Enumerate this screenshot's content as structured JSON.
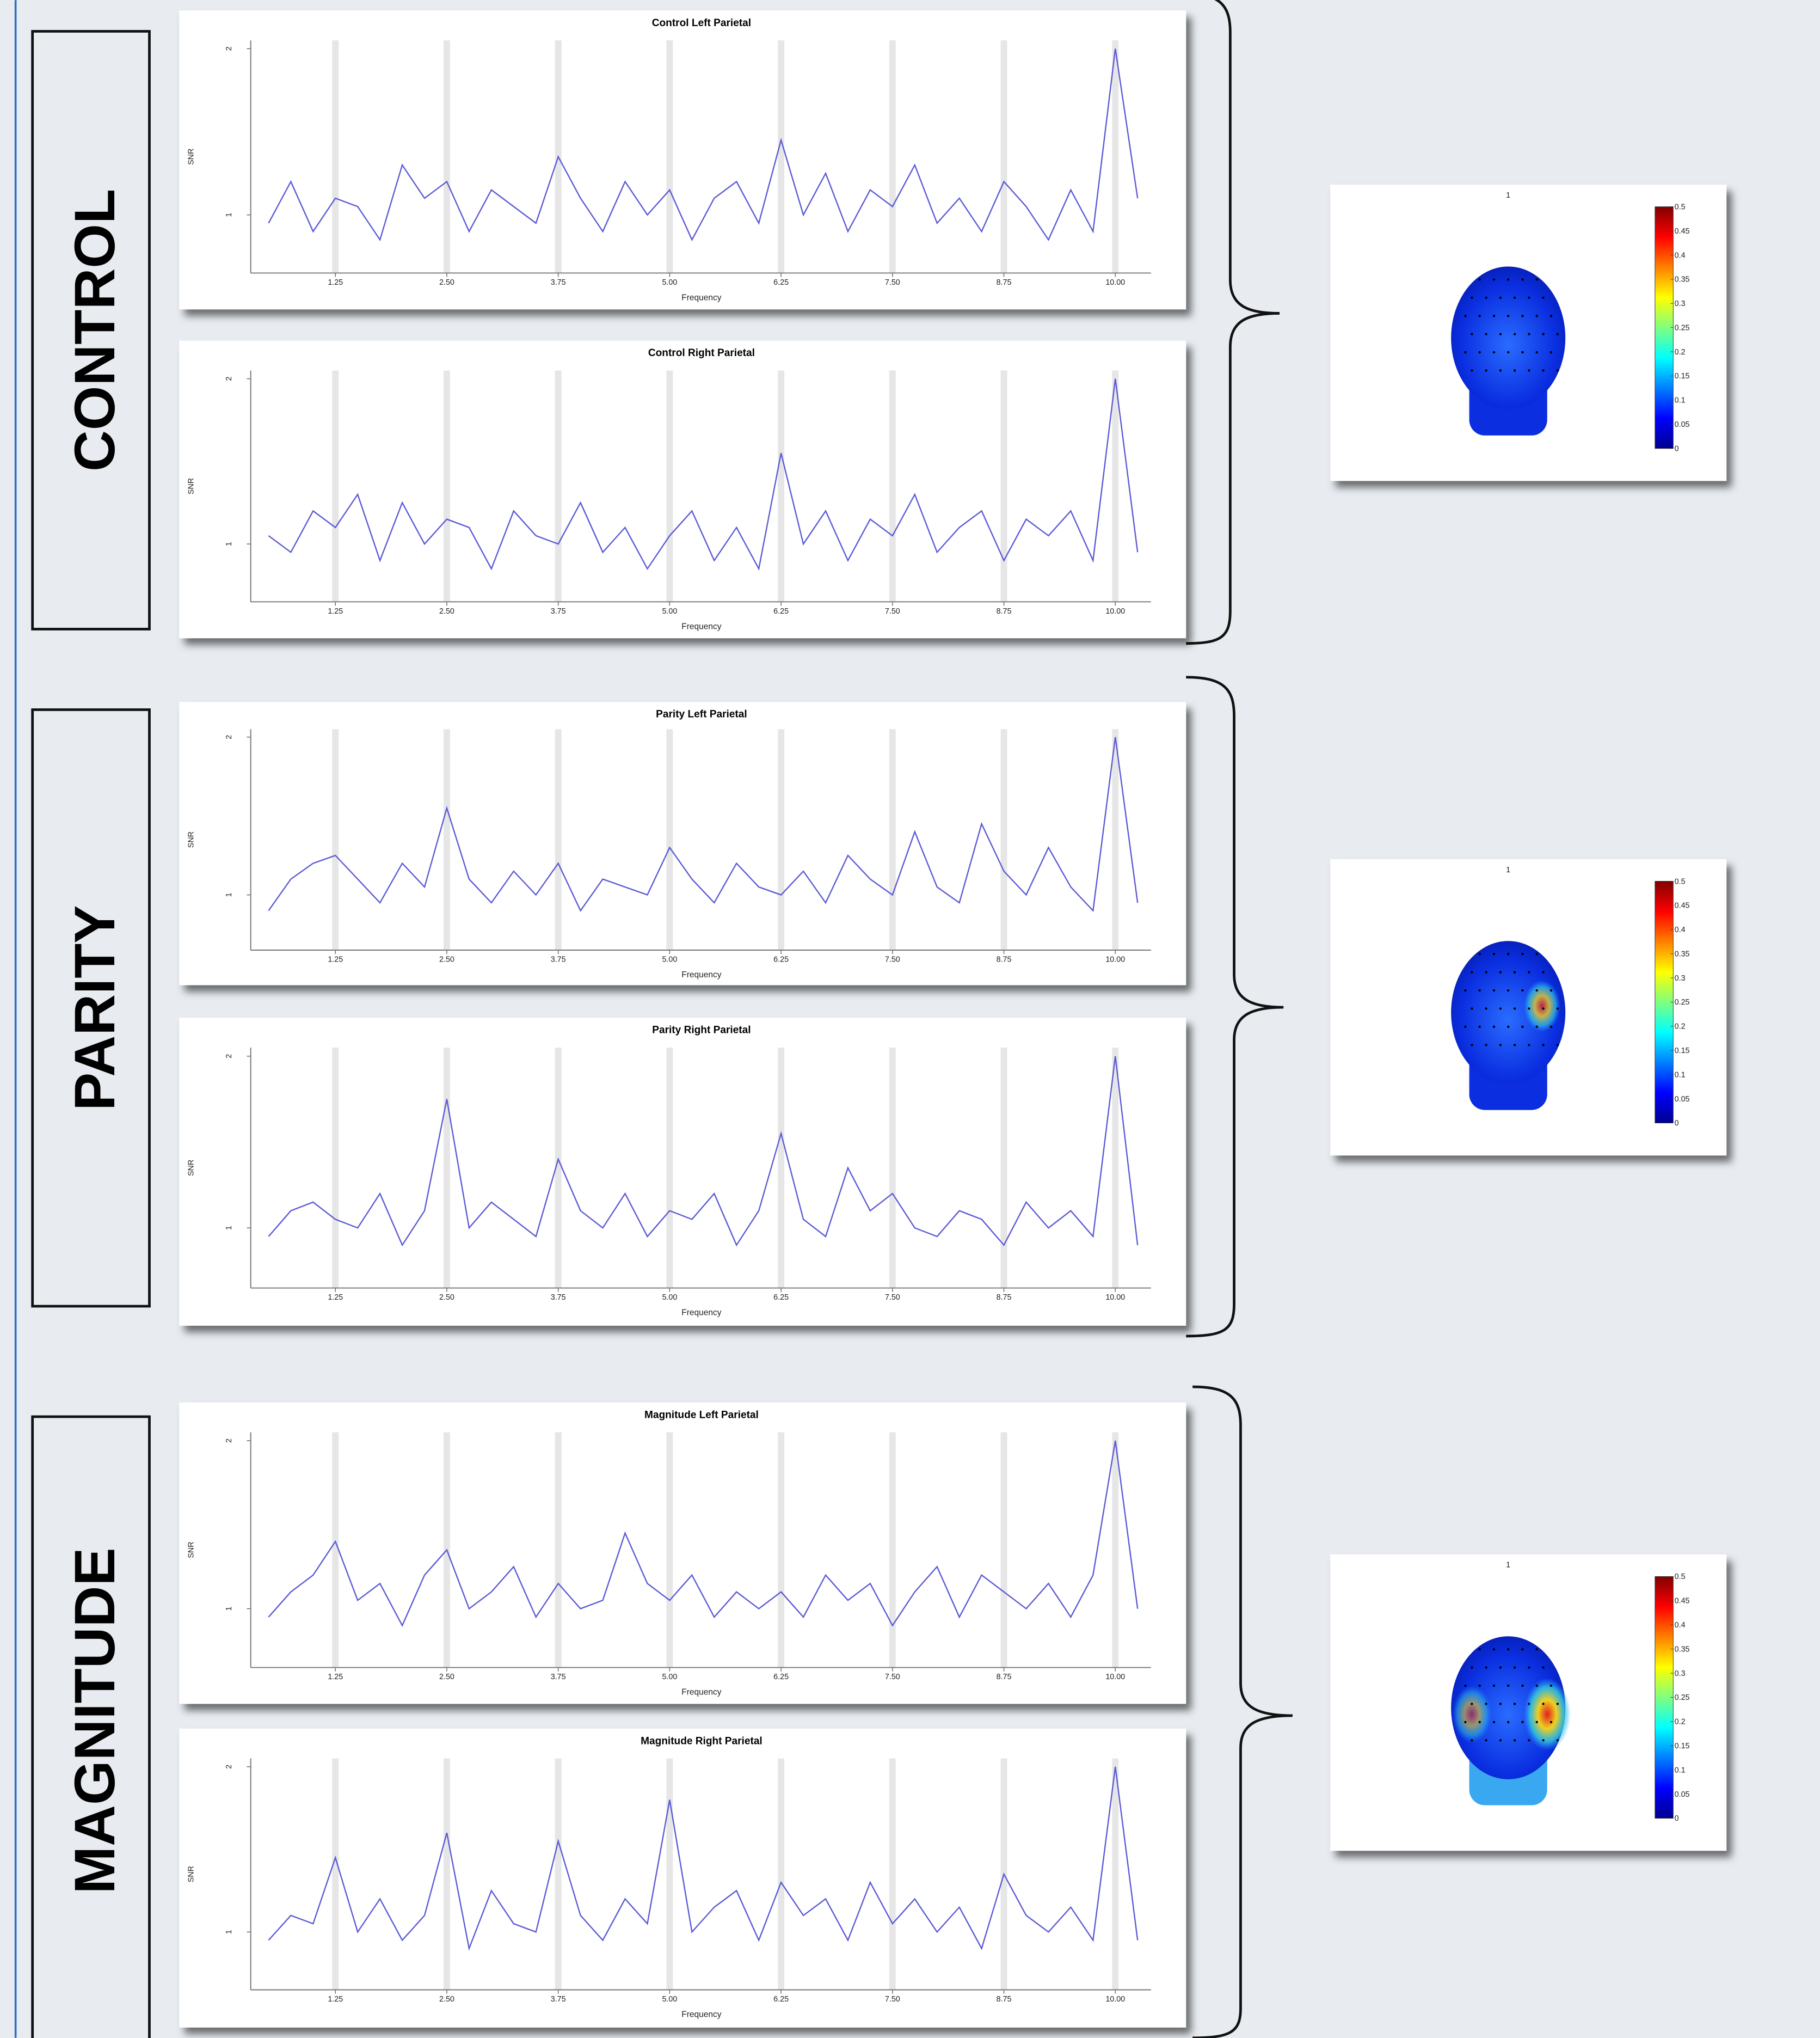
{
  "groups": [
    {
      "label": "CONTROL"
    },
    {
      "label": "PARITY"
    },
    {
      "label": "MAGNITUDE"
    }
  ],
  "chart_data": [
    {
      "type": "line",
      "title": "Control Left Parietal",
      "x_label": "Frequency",
      "y_label": "SNR",
      "xlim": [
        0.3,
        10.4
      ],
      "ylim": [
        0.65,
        2.05
      ],
      "grid": true,
      "xticks": [
        1.25,
        {
          "value": 2.5,
          "label": "2.50"
        },
        3.75,
        {
          "value": 5,
          "label": "5.00"
        },
        6.25,
        {
          "value": 7.5,
          "label": "7.50"
        },
        8.75,
        {
          "value": 10,
          "label": "10.00"
        }
      ],
      "yticks": [
        1,
        2
      ],
      "x": [
        0.5,
        0.75,
        1,
        1.25,
        1.5,
        1.75,
        2,
        2.25,
        2.5,
        2.75,
        3,
        3.25,
        3.5,
        3.75,
        4,
        4.25,
        4.5,
        4.75,
        5,
        5.25,
        5.5,
        5.75,
        6,
        6.25,
        6.5,
        6.75,
        7,
        7.25,
        7.5,
        7.75,
        8,
        8.25,
        8.5,
        8.75,
        9,
        9.25,
        9.5,
        9.75,
        10,
        10.25
      ],
      "series": [
        {
          "color": "#5b5bd6",
          "values": [
            0.95,
            1.2,
            0.9,
            1.1,
            1.05,
            0.85,
            1.3,
            1.1,
            1.2,
            0.9,
            1.15,
            1.05,
            0.95,
            1.35,
            1.1,
            0.9,
            1.2,
            1.0,
            1.15,
            0.85,
            1.1,
            1.2,
            0.95,
            1.45,
            1.0,
            1.25,
            0.9,
            1.15,
            1.05,
            1.3,
            0.95,
            1.1,
            0.9,
            1.2,
            1.05,
            0.85,
            1.15,
            0.9,
            2.0,
            1.1
          ]
        }
      ]
    },
    {
      "type": "line",
      "title": "Control Right Parietal",
      "x_label": "Frequency",
      "y_label": "SNR",
      "xlim": [
        0.3,
        10.4
      ],
      "ylim": [
        0.65,
        2.05
      ],
      "grid": true,
      "xticks": [
        1.25,
        {
          "value": 2.5,
          "label": "2.50"
        },
        3.75,
        {
          "value": 5,
          "label": "5.00"
        },
        6.25,
        {
          "value": 7.5,
          "label": "7.50"
        },
        8.75,
        {
          "value": 10,
          "label": "10.00"
        }
      ],
      "yticks": [
        1,
        2
      ],
      "x": [
        0.5,
        0.75,
        1,
        1.25,
        1.5,
        1.75,
        2,
        2.25,
        2.5,
        2.75,
        3,
        3.25,
        3.5,
        3.75,
        4,
        4.25,
        4.5,
        4.75,
        5,
        5.25,
        5.5,
        5.75,
        6,
        6.25,
        6.5,
        6.75,
        7,
        7.25,
        7.5,
        7.75,
        8,
        8.25,
        8.5,
        8.75,
        9,
        9.25,
        9.5,
        9.75,
        10,
        10.25
      ],
      "series": [
        {
          "color": "#5b5bd6",
          "values": [
            1.05,
            0.95,
            1.2,
            1.1,
            1.3,
            0.9,
            1.25,
            1.0,
            1.15,
            1.1,
            0.85,
            1.2,
            1.05,
            1.0,
            1.25,
            0.95,
            1.1,
            0.85,
            1.05,
            1.2,
            0.9,
            1.1,
            0.85,
            1.55,
            1.0,
            1.2,
            0.9,
            1.15,
            1.05,
            1.3,
            0.95,
            1.1,
            1.2,
            0.9,
            1.15,
            1.05,
            1.2,
            0.9,
            2.0,
            0.95
          ]
        }
      ]
    },
    {
      "type": "line",
      "title": "Parity Left Parietal",
      "x_label": "Frequency",
      "y_label": "SNR",
      "xlim": [
        0.3,
        10.4
      ],
      "ylim": [
        0.65,
        2.05
      ],
      "grid": true,
      "xticks": [
        1.25,
        {
          "value": 2.5,
          "label": "2.50"
        },
        3.75,
        {
          "value": 5,
          "label": "5.00"
        },
        6.25,
        {
          "value": 7.5,
          "label": "7.50"
        },
        8.75,
        {
          "value": 10,
          "label": "10.00"
        }
      ],
      "yticks": [
        1,
        2
      ],
      "x": [
        0.5,
        0.75,
        1,
        1.25,
        1.5,
        1.75,
        2,
        2.25,
        2.5,
        2.75,
        3,
        3.25,
        3.5,
        3.75,
        4,
        4.25,
        4.5,
        4.75,
        5,
        5.25,
        5.5,
        5.75,
        6,
        6.25,
        6.5,
        6.75,
        7,
        7.25,
        7.5,
        7.75,
        8,
        8.25,
        8.5,
        8.75,
        9,
        9.25,
        9.5,
        9.75,
        10,
        10.25
      ],
      "series": [
        {
          "color": "#5b5bd6",
          "values": [
            0.9,
            1.1,
            1.2,
            1.25,
            1.1,
            0.95,
            1.2,
            1.05,
            1.55,
            1.1,
            0.95,
            1.15,
            1.0,
            1.2,
            0.9,
            1.1,
            1.05,
            1.0,
            1.3,
            1.1,
            0.95,
            1.2,
            1.05,
            1.0,
            1.15,
            0.95,
            1.25,
            1.1,
            1.0,
            1.4,
            1.05,
            0.95,
            1.45,
            1.15,
            1.0,
            1.3,
            1.05,
            0.9,
            2.0,
            0.95
          ]
        }
      ]
    },
    {
      "type": "line",
      "title": "Parity Right Parietal",
      "x_label": "Frequency",
      "y_label": "SNR",
      "xlim": [
        0.3,
        10.4
      ],
      "ylim": [
        0.65,
        2.05
      ],
      "grid": true,
      "xticks": [
        1.25,
        {
          "value": 2.5,
          "label": "2.50"
        },
        3.75,
        {
          "value": 5,
          "label": "5.00"
        },
        6.25,
        {
          "value": 7.5,
          "label": "7.50"
        },
        8.75,
        {
          "value": 10,
          "label": "10.00"
        }
      ],
      "yticks": [
        1,
        2
      ],
      "x": [
        0.5,
        0.75,
        1,
        1.25,
        1.5,
        1.75,
        2,
        2.25,
        2.5,
        2.75,
        3,
        3.25,
        3.5,
        3.75,
        4,
        4.25,
        4.5,
        4.75,
        5,
        5.25,
        5.5,
        5.75,
        6,
        6.25,
        6.5,
        6.75,
        7,
        7.25,
        7.5,
        7.75,
        8,
        8.25,
        8.5,
        8.75,
        9,
        9.25,
        9.5,
        9.75,
        10,
        10.25
      ],
      "series": [
        {
          "color": "#5b5bd6",
          "values": [
            0.95,
            1.1,
            1.15,
            1.05,
            1.0,
            1.2,
            0.9,
            1.1,
            1.75,
            1.0,
            1.15,
            1.05,
            0.95,
            1.4,
            1.1,
            1.0,
            1.2,
            0.95,
            1.1,
            1.05,
            1.2,
            0.9,
            1.1,
            1.55,
            1.05,
            0.95,
            1.35,
            1.1,
            1.2,
            1.0,
            0.95,
            1.1,
            1.05,
            0.9,
            1.15,
            1.0,
            1.1,
            0.95,
            2.0,
            0.9
          ]
        }
      ]
    },
    {
      "type": "line",
      "title": "Magnitude Left Parietal",
      "x_label": "Frequency",
      "y_label": "SNR",
      "xlim": [
        0.3,
        10.4
      ],
      "ylim": [
        0.65,
        2.05
      ],
      "grid": true,
      "xticks": [
        1.25,
        {
          "value": 2.5,
          "label": "2.50"
        },
        3.75,
        {
          "value": 5,
          "label": "5.00"
        },
        6.25,
        {
          "value": 7.5,
          "label": "7.50"
        },
        8.75,
        {
          "value": 10,
          "label": "10.00"
        }
      ],
      "yticks": [
        1,
        2
      ],
      "x": [
        0.5,
        0.75,
        1,
        1.25,
        1.5,
        1.75,
        2,
        2.25,
        2.5,
        2.75,
        3,
        3.25,
        3.5,
        3.75,
        4,
        4.25,
        4.5,
        4.75,
        5,
        5.25,
        5.5,
        5.75,
        6,
        6.25,
        6.5,
        6.75,
        7,
        7.25,
        7.5,
        7.75,
        8,
        8.25,
        8.5,
        8.75,
        9,
        9.25,
        9.5,
        9.75,
        10,
        10.25
      ],
      "series": [
        {
          "color": "#5b5bd6",
          "values": [
            0.95,
            1.1,
            1.2,
            1.4,
            1.05,
            1.15,
            0.9,
            1.2,
            1.35,
            1.0,
            1.1,
            1.25,
            0.95,
            1.15,
            1.0,
            1.05,
            1.45,
            1.15,
            1.05,
            1.2,
            0.95,
            1.1,
            1.0,
            1.1,
            0.95,
            1.2,
            1.05,
            1.15,
            0.9,
            1.1,
            1.25,
            0.95,
            1.2,
            1.1,
            1.0,
            1.15,
            0.95,
            1.2,
            2.0,
            1.0
          ]
        }
      ]
    },
    {
      "type": "line",
      "title": "Magnitude Right Parietal",
      "x_label": "Frequency",
      "y_label": "SNR",
      "xlim": [
        0.3,
        10.4
      ],
      "ylim": [
        0.65,
        2.05
      ],
      "grid": true,
      "xticks": [
        1.25,
        {
          "value": 2.5,
          "label": "2.50"
        },
        3.75,
        {
          "value": 5,
          "label": "5.00"
        },
        6.25,
        {
          "value": 7.5,
          "label": "7.50"
        },
        8.75,
        {
          "value": 10,
          "label": "10.00"
        }
      ],
      "yticks": [
        1,
        2
      ],
      "x": [
        0.5,
        0.75,
        1,
        1.25,
        1.5,
        1.75,
        2,
        2.25,
        2.5,
        2.75,
        3,
        3.25,
        3.5,
        3.75,
        4,
        4.25,
        4.5,
        4.75,
        5,
        5.25,
        5.5,
        5.75,
        6,
        6.25,
        6.5,
        6.75,
        7,
        7.25,
        7.5,
        7.75,
        8,
        8.25,
        8.5,
        8.75,
        9,
        9.25,
        9.5,
        9.75,
        10,
        10.25
      ],
      "series": [
        {
          "color": "#5b5bd6",
          "values": [
            0.95,
            1.1,
            1.05,
            1.45,
            1.0,
            1.2,
            0.95,
            1.1,
            1.6,
            0.9,
            1.25,
            1.05,
            1.0,
            1.55,
            1.1,
            0.95,
            1.2,
            1.05,
            1.8,
            1.0,
            1.15,
            1.25,
            0.95,
            1.3,
            1.1,
            1.2,
            0.95,
            1.3,
            1.05,
            1.2,
            1.0,
            1.15,
            0.9,
            1.35,
            1.1,
            1.0,
            1.15,
            0.95,
            2.0,
            0.95
          ]
        }
      ]
    }
  ],
  "topomaps": [
    {
      "label": "1",
      "clim": [
        0,
        0.5
      ],
      "ticks": [
        0.5,
        0.45,
        0.4,
        0.35,
        0.3,
        0.25,
        0.2,
        0.15,
        0.1,
        0.05,
        0
      ]
    },
    {
      "label": "1",
      "clim": [
        0,
        0.5
      ],
      "ticks": [
        0.5,
        0.45,
        0.4,
        0.35,
        0.3,
        0.25,
        0.2,
        0.15,
        0.1,
        0.05,
        0
      ]
    },
    {
      "label": "1",
      "clim": [
        0,
        0.5
      ],
      "ticks": [
        0.5,
        0.45,
        0.4,
        0.35,
        0.3,
        0.25,
        0.2,
        0.15,
        0.1,
        0.05,
        0
      ]
    }
  ]
}
